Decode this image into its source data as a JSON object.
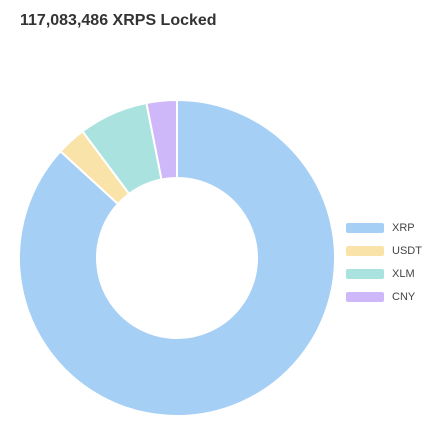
{
  "header": {
    "title": "117,083,486 XRPS Locked"
  },
  "colors": {
    "XRP": "#a6cff5",
    "USDT": "#f9e3a8",
    "XLM": "#a9e2df",
    "CNY": "#cfb8f9"
  },
  "legend": {
    "items": [
      {
        "label": "XRP",
        "color": "#a6cff5"
      },
      {
        "label": "USDT",
        "color": "#f9e3a8"
      },
      {
        "label": "XLM",
        "color": "#a9e2df"
      },
      {
        "label": "CNY",
        "color": "#cfb8f9"
      }
    ]
  },
  "chart_data": {
    "type": "pie",
    "variant": "doughnut",
    "title": "117,083,486 XRPS Locked",
    "categories": [
      "XRP",
      "USDT",
      "XLM",
      "CNY"
    ],
    "values": [
      86.8,
      3.0,
      7.1,
      3.1
    ],
    "unit": "percent (estimated share)",
    "legend_position": "right"
  }
}
